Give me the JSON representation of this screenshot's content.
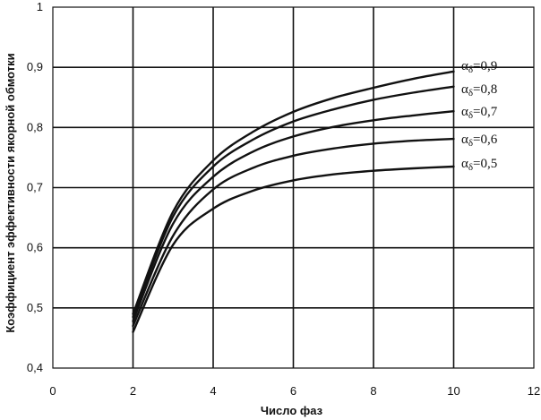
{
  "chart_data": {
    "type": "line",
    "title": "",
    "xlabel": "Число фаз",
    "ylabel": "Коэффициент эффективности якорной обмотки",
    "xlim": [
      0,
      12
    ],
    "ylim": [
      0.4,
      1
    ],
    "x_ticks": [
      "0",
      "2",
      "4",
      "6",
      "8",
      "10",
      "12"
    ],
    "y_ticks": [
      "0,4",
      "0,5",
      "0,6",
      "0,7",
      "0,8",
      "0,9",
      "1"
    ],
    "grid": true,
    "series": [
      {
        "name": "αδ=0,9",
        "symbol": "α",
        "sub": "δ",
        "value_text": "=0,9",
        "x": [
          2,
          3,
          4,
          5,
          6,
          7,
          8,
          9,
          10
        ],
        "y": [
          0.49,
          0.66,
          0.745,
          0.793,
          0.826,
          0.849,
          0.866,
          0.881,
          0.893
        ]
      },
      {
        "name": "αδ=0,8",
        "symbol": "α",
        "sub": "δ",
        "value_text": "=0,8",
        "x": [
          2,
          3,
          4,
          5,
          6,
          7,
          8,
          9,
          10
        ],
        "y": [
          0.485,
          0.652,
          0.735,
          0.78,
          0.81,
          0.83,
          0.846,
          0.858,
          0.868
        ]
      },
      {
        "name": "αδ=0,7",
        "symbol": "α",
        "sub": "δ",
        "value_text": "=0,7",
        "x": [
          2,
          3,
          4,
          5,
          6,
          7,
          8,
          9,
          10
        ],
        "y": [
          0.478,
          0.64,
          0.718,
          0.76,
          0.785,
          0.801,
          0.812,
          0.82,
          0.827
        ]
      },
      {
        "name": "αδ=0,6",
        "symbol": "α",
        "sub": "δ",
        "value_text": "=0,6",
        "x": [
          2,
          3,
          4,
          5,
          6,
          7,
          8,
          9,
          10
        ],
        "y": [
          0.47,
          0.62,
          0.697,
          0.733,
          0.753,
          0.765,
          0.773,
          0.778,
          0.781
        ]
      },
      {
        "name": "αδ=0,5",
        "symbol": "α",
        "sub": "δ",
        "value_text": "=0,5",
        "x": [
          2,
          3,
          4,
          5,
          6,
          7,
          8,
          9,
          10
        ],
        "y": [
          0.46,
          0.605,
          0.665,
          0.695,
          0.712,
          0.722,
          0.728,
          0.732,
          0.735
        ]
      }
    ]
  }
}
